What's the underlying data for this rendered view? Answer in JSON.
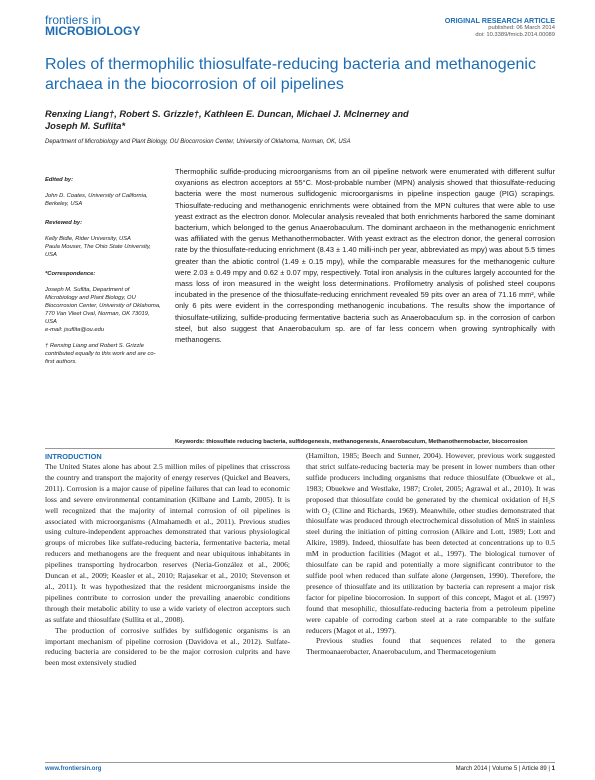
{
  "header": {
    "logo_line1": "frontiers in",
    "logo_line2": "MICROBIOLOGY",
    "article_type": "ORIGINAL RESEARCH ARTICLE",
    "published": "published: 06 March 2014",
    "doi": "doi: 10.3389/fmicb.2014.00089"
  },
  "title": "Roles of thermophilic thiosulfate-reducing bacteria and methanogenic archaea in the biocorrosion of oil pipelines",
  "authors": "Renxing Liang†, Robert S. Grizzle†, Kathleen E. Duncan, Michael J. McInerney and Joseph M. Suflita*",
  "affiliation": "Department of Microbiology and Plant Biology, OU Biocorrosion Center, University of Oklahoma, Norman, OK, USA",
  "sidebar": {
    "edited_label": "Edited by:",
    "edited": "John D. Coates, University of California, Berkeley, USA",
    "reviewed_label": "Reviewed by:",
    "reviewed": "Kelly Bidle, Rider University, USA\nPaula Mouser, The Ohio State University, USA",
    "corr_label": "*Correspondence:",
    "corr": "Joseph M. Suflita, Department of Microbiology and Plant Biology, OU Biocorrosion Center, University of Oklahoma, 770 Van Vleet Oval, Norman, OK 73019, USA\ne-mail: jsuflita@ou.edu",
    "note": "† Renxing Liang and Robert S. Grizzle contributed equally to this work and are co-first authors."
  },
  "abstract": "Thermophilic sulfide-producing microorganisms from an oil pipeline network were enumerated with different sulfur oxyanions as electron acceptors at 55°C. Most-probable number (MPN) analysis showed that thiosulfate-reducing bacteria were the most numerous sulfidogenic microorganisms in pipeline inspection gauge (PIG) scrapings. Thiosulfate-reducing and methanogenic enrichments were obtained from the MPN cultures that were able to use yeast extract as the electron donor. Molecular analysis revealed that both enrichments harbored the same dominant bacterium, which belonged to the genus Anaerobaculum. The dominant archaeon in the methanogenic enrichment was affiliated with the genus Methanothermobacter. With yeast extract as the electron donor, the general corrosion rate by the thiosulfate-reducing enrichment (8.43 ± 1.40 milli-inch per year, abbreviated as mpy) was about 5.5 times greater than the abiotic control (1.49 ± 0.15 mpy), while the comparable measures for the methanogenic culture were 2.03 ± 0.49 mpy and 0.62 ± 0.07 mpy, respectively. Total iron analysis in the cultures largely accounted for the mass loss of iron measured in the weight loss determinations. Profilometry analysis of polished steel coupons incubated in the presence of the thiosulfate-reducing enrichment revealed 59 pits over an area of 71.16 mm², while only 6 pits were evident in the corresponding methanogenic incubations. The results show the importance of thiosulfate-utilizing, sulfide-producing fermentative bacteria such as Anaerobaculum sp. in the corrosion of carbon steel, but also suggest that Anaerobaculum sp. are of far less concern when growing syntrophically with methanogens.",
  "keywords_label": "Keywords:",
  "keywords": "thiosulfate reducing bacteria, sulfidogenesis, methanogenesis, Anaerobaculum, Methanothermobacter, biocorrosion",
  "intro_heading": "INTRODUCTION",
  "left_paragraphs": [
    "The United States alone has about 2.5 million miles of pipelines that crisscross the country and transport the majority of energy reserves (Quickel and Beavers, 2011). Corrosion is a major cause of pipeline failures that can lead to economic loss and severe environmental contamination (Kilbane and Lamb, 2005). It is well recognized that the majority of internal corrosion of oil pipelines is associated with microorganisms (Almahamedh et al., 2011). Previous studies using culture-independent approaches demonstrated that various physiological groups of microbes like sulfate-reducing bacteria, fermentative bacteria, metal reducers and methanogens are the frequent and near ubiquitous inhabitants in pipelines transporting hydrocarbon reserves (Neria-González et al., 2006; Duncan et al., 2009; Keasler et al., 2010; Rajasekar et al., 2010; Stevenson et al., 2011). It was hypothesized that the resident microorganisms inside the pipelines contribute to corrosion under the prevailing anaerobic conditions through their metabolic ability to use a wide variety of electron acceptors such as sulfate and thiosulfate (Sullita et al., 2008).",
    "The production of corrosive sulfides by sulfidogenic organisms is an important mechanism of pipeline corrosion (Davidova et al., 2012). Sulfate-reducing bacteria are considered to be the major corrosion culprits and have been most extensively studied"
  ],
  "right_paragraphs": [
    "(Hamilton, 1985; Beech and Sunner, 2004). However, previous work suggested that strict sulfate-reducing bacteria may be present in lower numbers than other sulfide producers including organisms that reduce thiosulfate (Obuekwe et al., 1983; Obuekwe and Westlake, 1987; Crolet, 2005; Agrawal et al., 2010). It was proposed that thiosulfate could be generated by the chemical oxidation of H₂S with O₂ (Cline and Richards, 1969). Meanwhile, other studies demonstrated that thiosulfate was produced through electrochemical dissolution of MnS in stainless steel during the initiation of pitting corrosion (Alkire and Lott, 1989; Lott and Alkire, 1989). Indeed, thiosulfate has been detected at concentrations up to 0.5 mM in production facilities (Magot et al., 1997). The biological turnover of thiosulfate can be rapid and potentially a more significant contributor to the sulfide pool when reduced than sulfate alone (Jørgensen, 1990). Therefore, the presence of thiosulfate and its utilization by bacteria can represent a major risk factor for pipeline biocorrosion. In support of this concept, Magot et al. (1997) found that mesophilic, thiosulfate-reducing bacteria from a petroleum pipeline were capable of corroding carbon steel at a rate comparable to the sulfate reducers (Magot et al., 1997).",
    "Previous studies found that sequences related to the genera Thermoanaerobacter, Anaerobaculum, and Thermacetogenium"
  ],
  "footer": {
    "url": "www.frontiersin.org",
    "info": "March 2014 | Volume 5 | Article 89 |",
    "page": "1"
  }
}
